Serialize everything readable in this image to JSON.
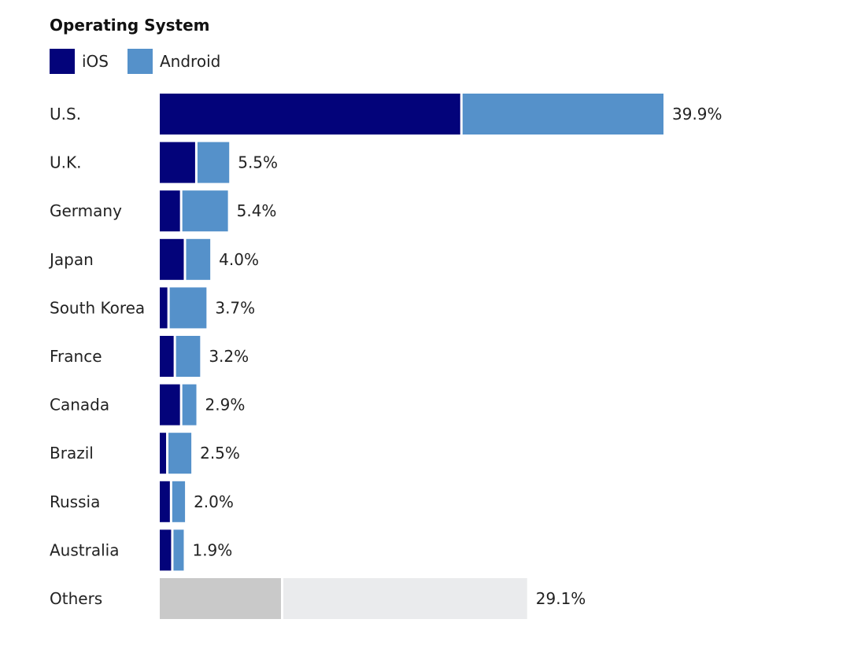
{
  "chart_data": {
    "type": "bar",
    "stacked": true,
    "orientation": "horizontal",
    "title": "Operating System",
    "legend": [
      {
        "name": "iOS",
        "color": "#03037a"
      },
      {
        "name": "Android",
        "color": "#5591ca"
      }
    ],
    "legend_position": "top-left",
    "categories": [
      "U.S.",
      "U.K.",
      "Germany",
      "Japan",
      "South Korea",
      "France",
      "Canada",
      "Brazil",
      "Russia",
      "Australia",
      "Others"
    ],
    "series": [
      {
        "name": "iOS",
        "values": [
          23.8,
          2.8,
          1.6,
          1.9,
          0.6,
          1.1,
          1.6,
          0.5,
          0.8,
          0.9,
          9.6
        ]
      },
      {
        "name": "Android",
        "values": [
          16.1,
          2.7,
          3.8,
          2.1,
          3.1,
          2.1,
          1.3,
          2.0,
          1.2,
          1.0,
          19.5
        ]
      }
    ],
    "totals": [
      39.9,
      5.5,
      5.4,
      4.0,
      3.7,
      3.2,
      2.9,
      2.5,
      2.0,
      1.9,
      29.1
    ],
    "data_labels": [
      "39.9%",
      "5.5%",
      "5.4%",
      "4.0%",
      "3.7%",
      "3.2%",
      "2.9%",
      "2.5%",
      "2.0%",
      "1.9%",
      "29.1%"
    ],
    "others_colors": [
      "#c9c9c9",
      "#eaebed"
    ],
    "xlim": [
      0,
      39.9
    ],
    "grid": false
  }
}
